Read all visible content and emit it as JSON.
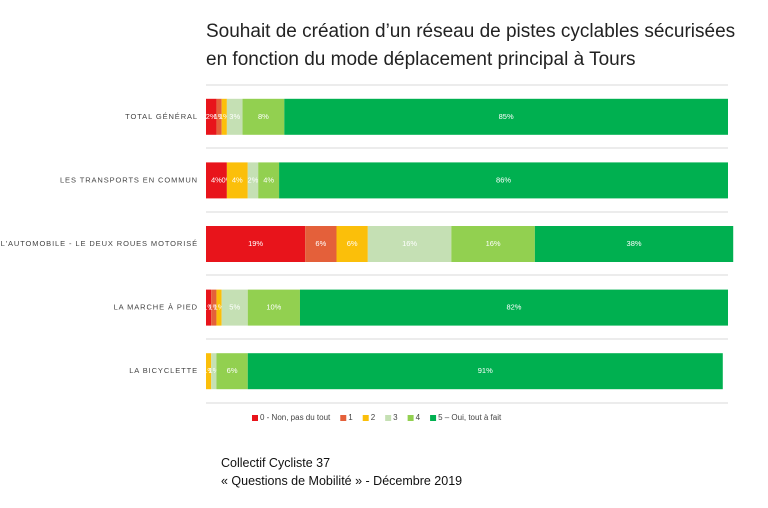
{
  "chart_data": {
    "type": "stacked-bar-horizontal",
    "title": [
      "Souhait de création d’un réseau de pistes cyclables sécurisées",
      "en fonction du mode déplacement principal à Tours"
    ],
    "categories": [
      "TOTAL GÉNÉRAL",
      "LES TRANSPORTS EN COMMUN",
      "L'AUTOMOBILE - LE DEUX ROUES MOTORISÉ",
      "LA MARCHE À PIED",
      "LA BICYCLETTE"
    ],
    "xlim": [
      0,
      100
    ],
    "series": [
      {
        "name": "0 - Non, pas du tout",
        "color": "#e8141b",
        "values": [
          2,
          4,
          19,
          1,
          0
        ],
        "value_labels": [
          "2%",
          "4%",
          "19%",
          "1%",
          "0%"
        ]
      },
      {
        "name": "1",
        "color": "#e4603a",
        "values": [
          1,
          0,
          6,
          1,
          0
        ],
        "value_labels": [
          "1%",
          "0%",
          "6%",
          "1%",
          "0%"
        ]
      },
      {
        "name": "2",
        "color": "#fbbf0a",
        "values": [
          1,
          4,
          6,
          1,
          1
        ],
        "value_labels": [
          "1%",
          "4%",
          "6%",
          "1%",
          "1%"
        ]
      },
      {
        "name": "3",
        "color": "#c5e0b4",
        "values": [
          3,
          2,
          16,
          5,
          1
        ],
        "value_labels": [
          "3%",
          "2%",
          "16%",
          "5%",
          "1%"
        ]
      },
      {
        "name": "4",
        "color": "#92d050",
        "values": [
          8,
          4,
          16,
          10,
          6
        ],
        "value_labels": [
          "8%",
          "4%",
          "16%",
          "10%",
          "6%"
        ]
      },
      {
        "name": "5 – Oui, tout à fait",
        "color": "#00b050",
        "values": [
          85,
          86,
          38,
          82,
          91
        ],
        "value_labels": [
          "85%",
          "86%",
          "38%",
          "82%",
          "91%"
        ]
      }
    ],
    "footer": [
      "Collectif Cycliste 37",
      "« Questions de Mobilité » - Décembre 2019"
    ]
  }
}
